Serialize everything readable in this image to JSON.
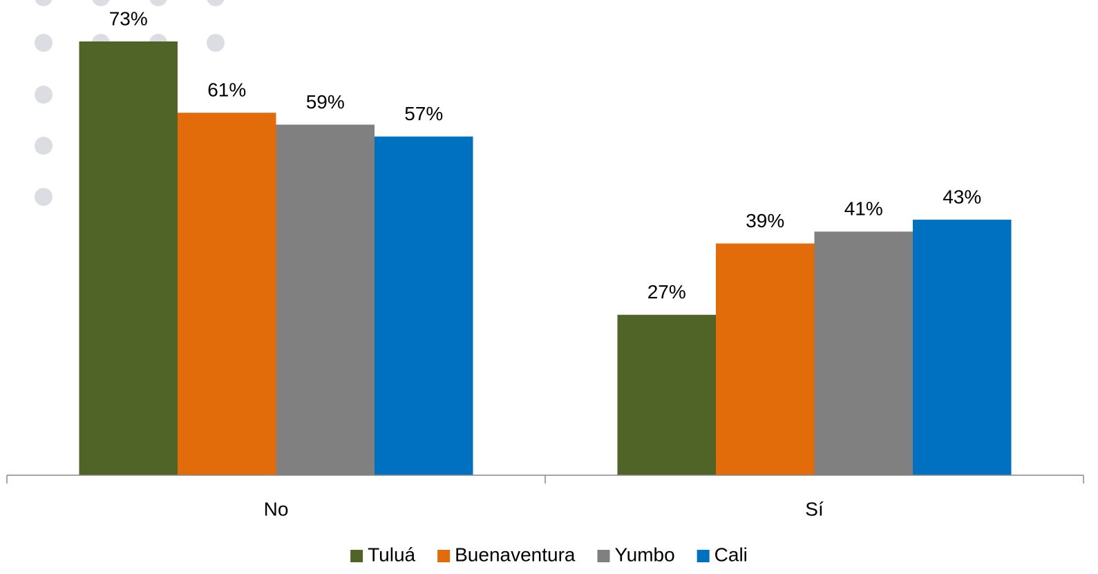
{
  "chart_data": {
    "type": "bar",
    "categories": [
      "No",
      "Sí"
    ],
    "series": [
      {
        "name": "Tuluá",
        "color": "#516428",
        "values": [
          73,
          27
        ],
        "value_labels": [
          "73%",
          "27%"
        ]
      },
      {
        "name": "Buenaventura",
        "color": "#e36c0a",
        "values": [
          61,
          39
        ],
        "value_labels": [
          "61%",
          "39%"
        ]
      },
      {
        "name": "Yumbo",
        "color": "#808080",
        "values": [
          59,
          41
        ],
        "value_labels": [
          "59%",
          "41%"
        ]
      },
      {
        "name": "Cali",
        "color": "#0070c0",
        "values": [
          57,
          43
        ],
        "value_labels": [
          "57%",
          "43%"
        ]
      }
    ],
    "legend": "bottom"
  }
}
